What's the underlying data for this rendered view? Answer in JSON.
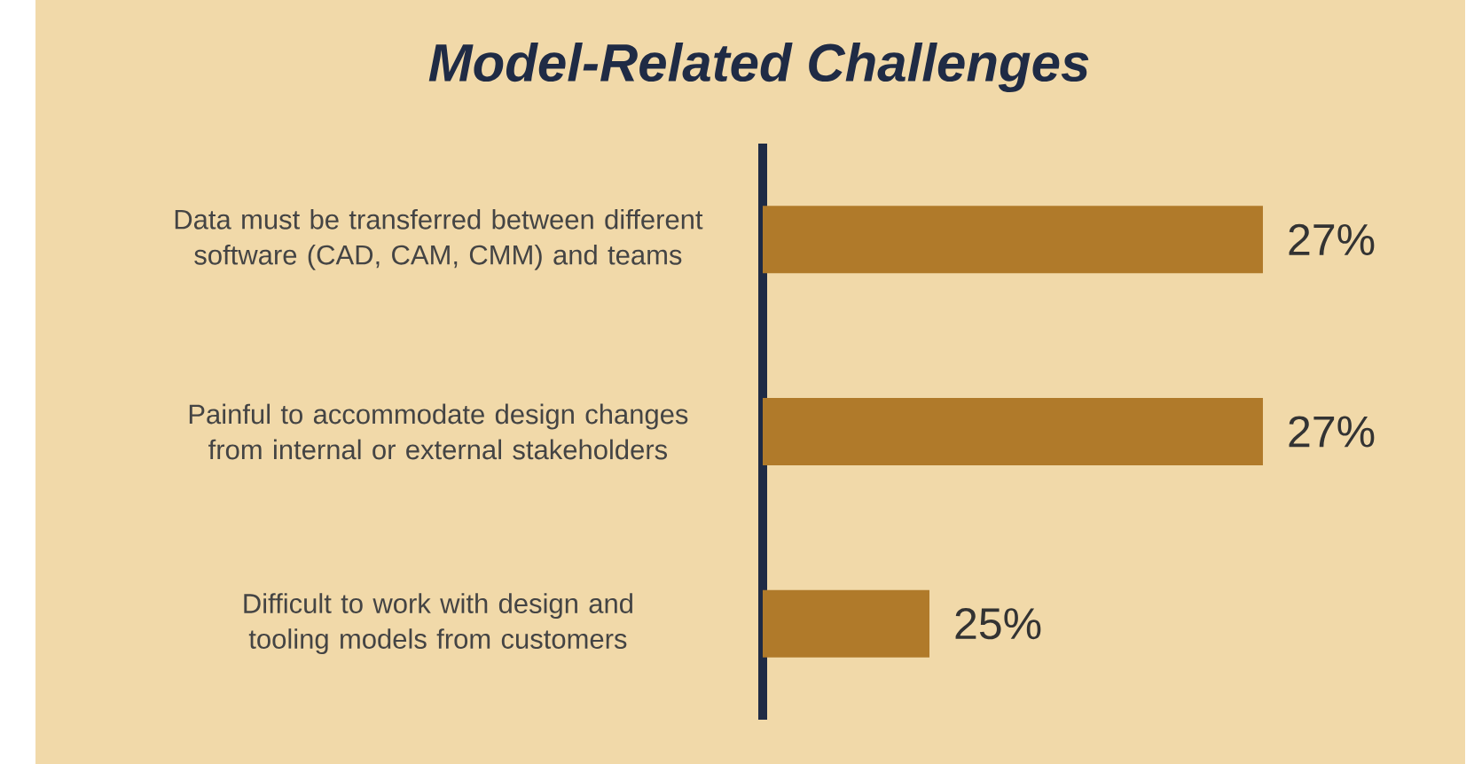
{
  "chart_data": {
    "type": "bar",
    "orientation": "horizontal",
    "title": "Model-Related Challenges",
    "categories": [
      "Data must be transferred between different software (CAD, CAM, CMM) and teams",
      "Painful to accommodate design changes from internal or external stakeholders",
      "Difficult to work with design and tooling models from customers"
    ],
    "values": [
      27,
      27,
      25
    ],
    "value_labels": [
      "27%",
      "27%",
      "25%"
    ],
    "color": "#b07a2a",
    "xlim": [
      24,
      27
    ],
    "tick_labels": "y"
  }
}
